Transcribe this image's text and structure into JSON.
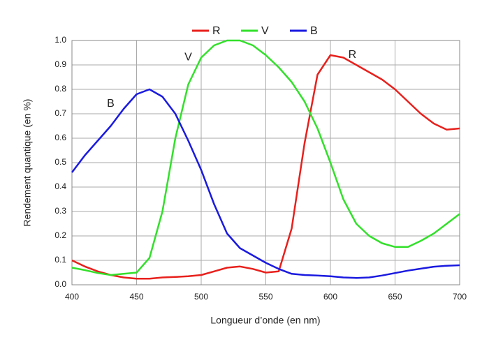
{
  "chart_data": {
    "type": "line",
    "xlabel": "Longueur d’onde (en nm)",
    "ylabel": "Rendement quantique (en %)",
    "x": [
      400,
      410,
      420,
      430,
      440,
      450,
      460,
      470,
      480,
      490,
      500,
      510,
      520,
      530,
      540,
      550,
      560,
      570,
      580,
      590,
      600,
      610,
      620,
      630,
      640,
      650,
      660,
      670,
      680,
      690,
      700
    ],
    "series": [
      {
        "name": "R",
        "color": "#e8201c",
        "values": [
          0.1,
          0.075,
          0.055,
          0.04,
          0.03,
          0.025,
          0.025,
          0.03,
          0.032,
          0.035,
          0.04,
          0.055,
          0.07,
          0.075,
          0.065,
          0.05,
          0.055,
          0.23,
          0.58,
          0.86,
          0.94,
          0.93,
          0.9,
          0.87,
          0.84,
          0.8,
          0.75,
          0.7,
          0.66,
          0.635,
          0.64
        ]
      },
      {
        "name": "V",
        "color": "#33e02b",
        "values": [
          0.07,
          0.06,
          0.048,
          0.04,
          0.045,
          0.05,
          0.11,
          0.3,
          0.6,
          0.82,
          0.93,
          0.98,
          1.0,
          1.0,
          0.98,
          0.94,
          0.89,
          0.83,
          0.75,
          0.64,
          0.5,
          0.35,
          0.25,
          0.2,
          0.17,
          0.155,
          0.155,
          0.18,
          0.21,
          0.25,
          0.29
        ]
      },
      {
        "name": "B",
        "color": "#1a1ae0",
        "values": [
          0.46,
          0.53,
          0.59,
          0.65,
          0.72,
          0.78,
          0.8,
          0.77,
          0.7,
          0.59,
          0.47,
          0.33,
          0.21,
          0.15,
          0.12,
          0.09,
          0.065,
          0.045,
          0.04,
          0.038,
          0.035,
          0.03,
          0.028,
          0.03,
          0.038,
          0.048,
          0.058,
          0.066,
          0.074,
          0.078,
          0.08
        ]
      }
    ],
    "annotations": [
      {
        "text": "B",
        "x": 430,
        "y": 0.74
      },
      {
        "text": "V",
        "x": 490,
        "y": 0.93
      },
      {
        "text": "R",
        "x": 617,
        "y": 0.94
      }
    ],
    "xlim": [
      400,
      700
    ],
    "xticks": [
      400,
      450,
      500,
      550,
      600,
      650,
      700
    ],
    "ylim": [
      0,
      1
    ],
    "yticks": [
      {
        "value": 0,
        "label": "0.0"
      },
      0.1,
      0.2,
      0.3,
      0.4,
      0.5,
      0.6,
      0.7,
      0.8,
      0.9,
      {
        "value": 1,
        "label": "1.0"
      }
    ],
    "grid": true,
    "legend": "top"
  }
}
